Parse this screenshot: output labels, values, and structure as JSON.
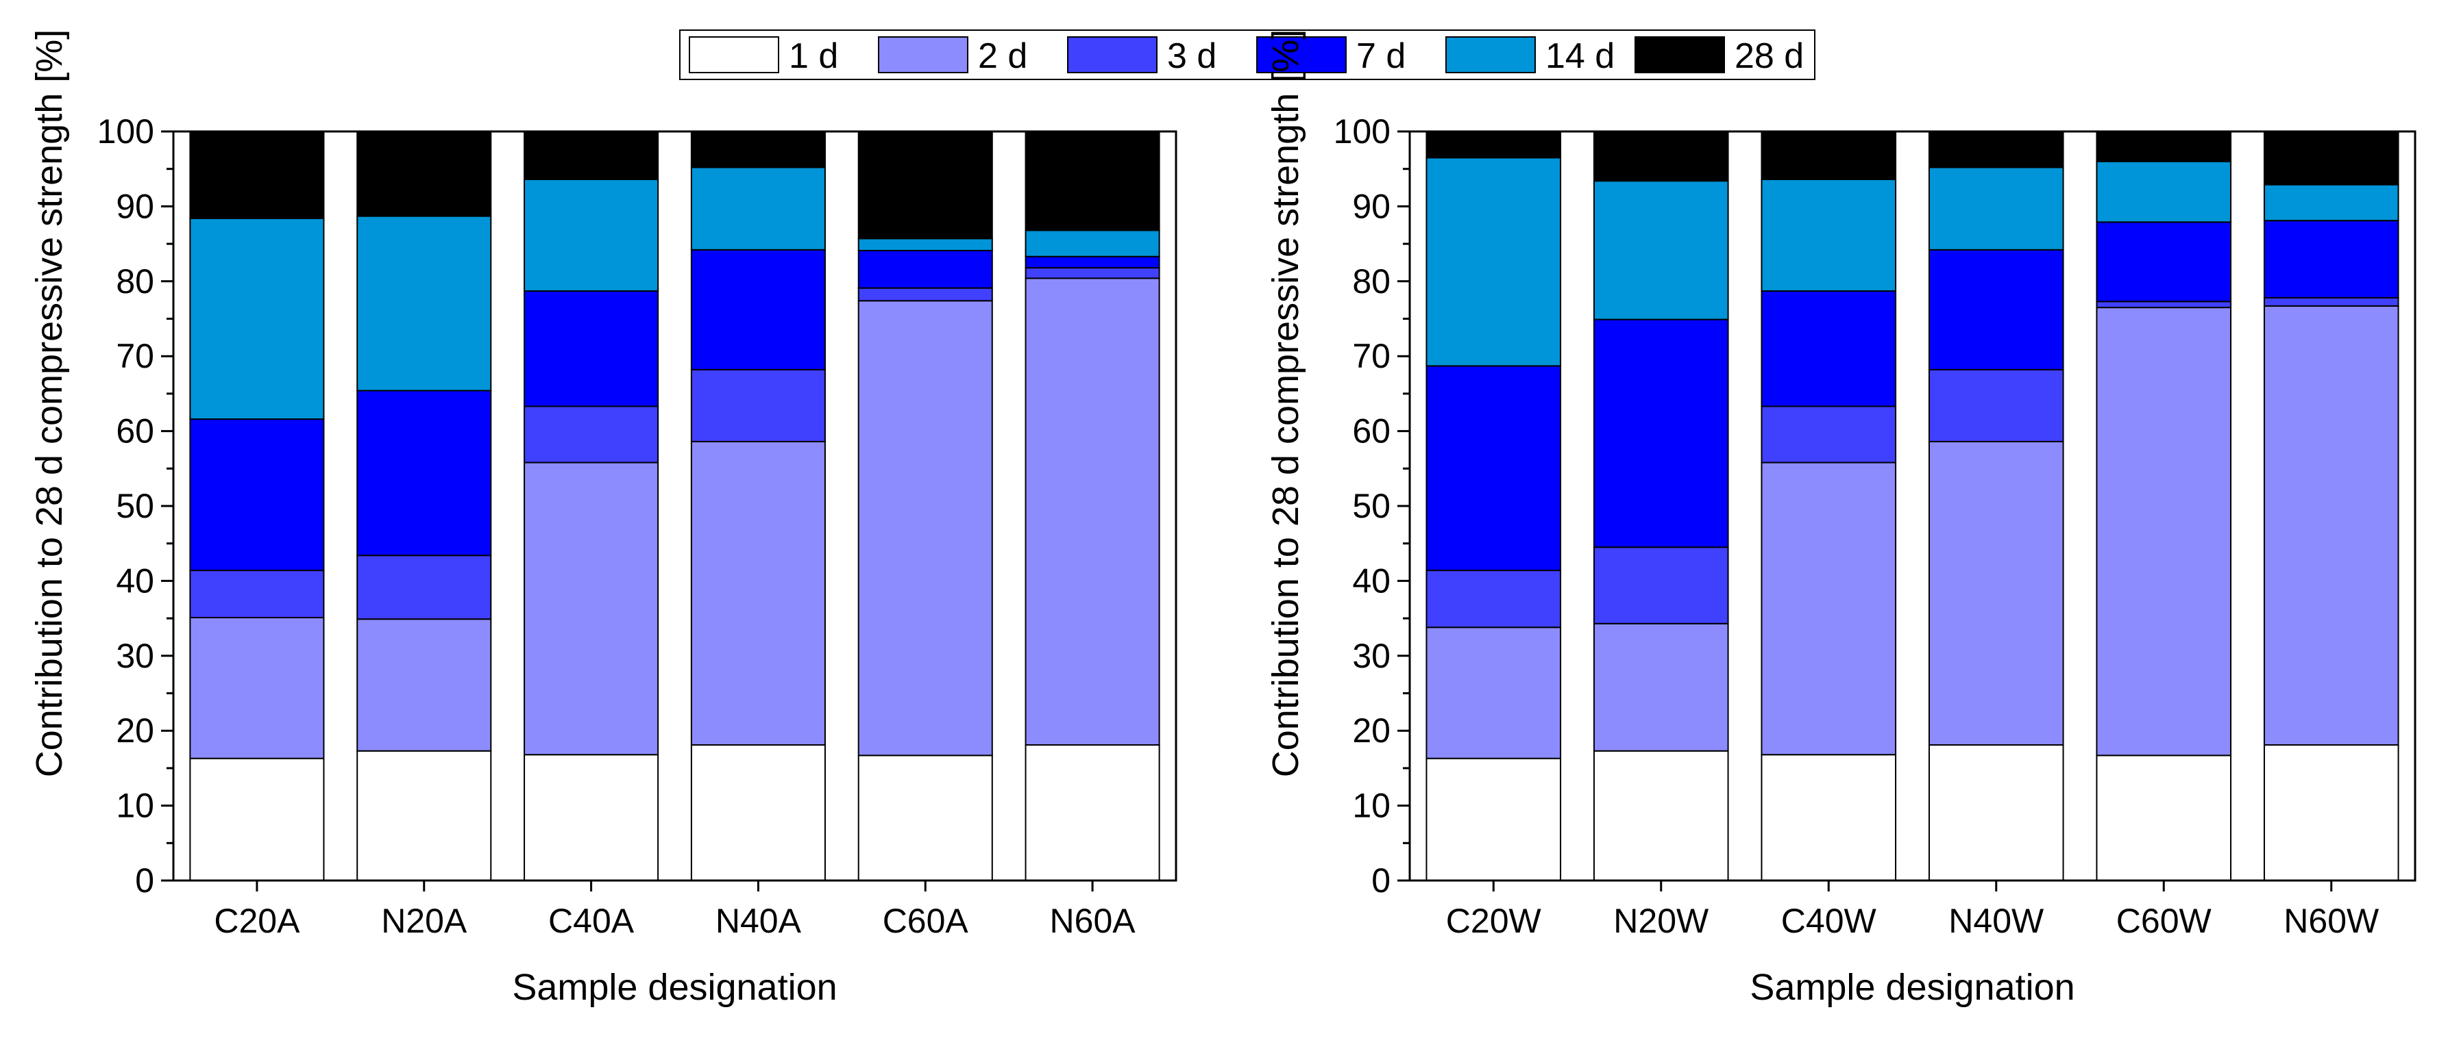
{
  "legend": {
    "entries": [
      {
        "label": "1 d",
        "color": "#ffffff"
      },
      {
        "label": "2 d",
        "color": "#8c8cff"
      },
      {
        "label": "3 d",
        "color": "#4040ff"
      },
      {
        "label": "7 d",
        "color": "#0000ff"
      },
      {
        "label": "14 d",
        "color": "#0095d8"
      },
      {
        "label": "28 d",
        "color": "#000000"
      }
    ]
  },
  "chart_data": [
    {
      "type": "bar",
      "stacked": true,
      "title": "",
      "xlabel": "Sample designation",
      "ylabel": "Contribution to 28 d compressive strength [%]",
      "ylim": [
        0,
        100
      ],
      "yticks": [
        "0",
        "10",
        "20",
        "30",
        "40",
        "50",
        "60",
        "70",
        "80",
        "90",
        "100"
      ],
      "categories": [
        "C20A",
        "N20A",
        "C40A",
        "N40A",
        "C60A",
        "N60A"
      ],
      "series": [
        {
          "name": "1 d",
          "values": [
            16.3,
            17.3,
            16.8,
            18.1,
            16.7,
            18.1
          ]
        },
        {
          "name": "2 d",
          "values": [
            18.8,
            17.6,
            39.0,
            40.5,
            60.7,
            62.3
          ]
        },
        {
          "name": "3 d",
          "values": [
            6.3,
            8.5,
            7.5,
            9.6,
            1.7,
            1.4
          ]
        },
        {
          "name": "7 d",
          "values": [
            20.2,
            22.0,
            15.4,
            16.0,
            5.0,
            1.5
          ]
        },
        {
          "name": "14 d",
          "values": [
            26.8,
            23.3,
            14.9,
            11.0,
            1.6,
            3.5
          ]
        },
        {
          "name": "28 d",
          "values": [
            11.6,
            11.3,
            6.4,
            4.8,
            14.3,
            13.2
          ]
        }
      ]
    },
    {
      "type": "bar",
      "stacked": true,
      "title": "",
      "xlabel": "Sample designation",
      "ylabel": "Contribution to 28 d compressive strength [%]",
      "ylim": [
        0,
        100
      ],
      "yticks": [
        "0",
        "10",
        "20",
        "30",
        "40",
        "50",
        "60",
        "70",
        "80",
        "90",
        "100"
      ],
      "categories": [
        "C20W",
        "N20W",
        "C40W",
        "N40W",
        "C60W",
        "N60W"
      ],
      "series": [
        {
          "name": "1 d",
          "values": [
            16.3,
            17.3,
            16.8,
            18.1,
            16.7,
            18.1
          ]
        },
        {
          "name": "2 d",
          "values": [
            17.5,
            17.0,
            39.0,
            40.5,
            59.8,
            58.6
          ]
        },
        {
          "name": "3 d",
          "values": [
            7.6,
            10.2,
            7.5,
            9.6,
            0.8,
            1.1
          ]
        },
        {
          "name": "7 d",
          "values": [
            27.3,
            30.4,
            15.4,
            16.0,
            10.6,
            10.3
          ]
        },
        {
          "name": "14 d",
          "values": [
            27.8,
            18.5,
            14.9,
            11.0,
            8.1,
            4.8
          ]
        },
        {
          "name": "28 d",
          "values": [
            3.5,
            6.6,
            6.4,
            4.8,
            4.0,
            7.1
          ]
        }
      ]
    }
  ]
}
